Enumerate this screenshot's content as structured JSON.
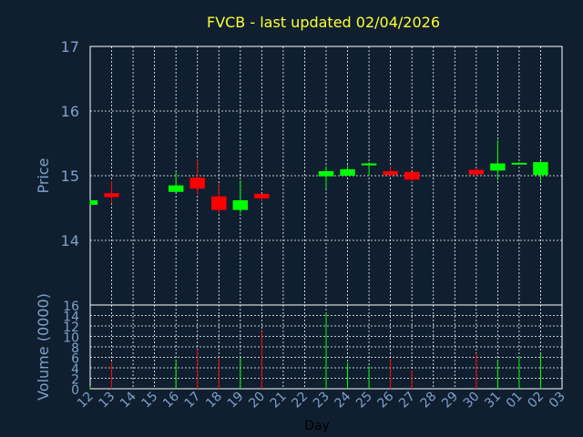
{
  "colors": {
    "background": "#0f1f30",
    "up": "#00ff00",
    "down": "#ff0000",
    "title": "#ffff33",
    "axis_text": "#7fa0c8",
    "grid": "#ffffff"
  },
  "chart_data": [
    {
      "type": "candlestick",
      "title": "FVCB - last updated 02/04/2026",
      "ylabel": "Price",
      "ylim": [
        13.0,
        17.0
      ],
      "yticks": [
        14,
        15,
        16,
        17
      ],
      "grid": true,
      "x": [
        "12",
        "13",
        "14",
        "15",
        "16",
        "17",
        "18",
        "19",
        "20",
        "21",
        "22",
        "23",
        "24",
        "25",
        "26",
        "27",
        "28",
        "29",
        "30",
        "31",
        "01",
        "02",
        "03"
      ],
      "candles": [
        {
          "x": "12",
          "open": 14.55,
          "high": 14.62,
          "low": 14.55,
          "close": 14.62
        },
        {
          "x": "13",
          "open": 14.73,
          "high": 14.92,
          "low": 14.57,
          "close": 14.67
        },
        {
          "x": "16",
          "open": 14.75,
          "high": 15.05,
          "low": 14.75,
          "close": 14.85
        },
        {
          "x": "17",
          "open": 14.97,
          "high": 15.25,
          "low": 14.72,
          "close": 14.8
        },
        {
          "x": "18",
          "open": 14.68,
          "high": 14.88,
          "low": 14.42,
          "close": 14.47
        },
        {
          "x": "19",
          "open": 14.47,
          "high": 14.93,
          "low": 14.42,
          "close": 14.62
        },
        {
          "x": "20",
          "open": 14.72,
          "high": 14.72,
          "low": 14.6,
          "close": 14.65
        },
        {
          "x": "23",
          "open": 14.99,
          "high": 15.15,
          "low": 14.8,
          "close": 15.07
        },
        {
          "x": "24",
          "open": 15.0,
          "high": 15.16,
          "low": 15.0,
          "close": 15.1
        },
        {
          "x": "25",
          "open": 15.16,
          "high": 15.21,
          "low": 15.0,
          "close": 15.19
        },
        {
          "x": "26",
          "open": 15.07,
          "high": 15.15,
          "low": 14.99,
          "close": 15.01
        },
        {
          "x": "27",
          "open": 15.06,
          "high": 15.06,
          "low": 14.9,
          "close": 14.94
        },
        {
          "x": "30",
          "open": 15.09,
          "high": 15.12,
          "low": 14.99,
          "close": 15.02
        },
        {
          "x": "31",
          "open": 15.08,
          "high": 15.55,
          "low": 14.93,
          "close": 15.19
        },
        {
          "x": "01",
          "open": 15.18,
          "high": 15.21,
          "low": 15.17,
          "close": 15.2
        },
        {
          "x": "02",
          "open": 15.01,
          "high": 15.22,
          "low": 14.92,
          "close": 15.21
        }
      ]
    },
    {
      "type": "bar",
      "ylabel": "Volume (0000)",
      "xlabel": "Day",
      "ylim": [
        0,
        16
      ],
      "yticks": [
        0,
        2,
        4,
        6,
        8,
        10,
        12,
        14,
        16
      ],
      "grid": true,
      "x": [
        "12",
        "13",
        "14",
        "15",
        "16",
        "17",
        "18",
        "19",
        "20",
        "21",
        "22",
        "23",
        "24",
        "25",
        "26",
        "27",
        "28",
        "29",
        "30",
        "31",
        "01",
        "02",
        "03"
      ],
      "bars": [
        {
          "x": "12",
          "value": 0.5,
          "direction": "up"
        },
        {
          "x": "13",
          "value": 5,
          "direction": "down"
        },
        {
          "x": "16",
          "value": 5.5,
          "direction": "up"
        },
        {
          "x": "17",
          "value": 7.5,
          "direction": "down"
        },
        {
          "x": "18",
          "value": 6,
          "direction": "down"
        },
        {
          "x": "19",
          "value": 6,
          "direction": "up"
        },
        {
          "x": "20",
          "value": 11,
          "direction": "down"
        },
        {
          "x": "23",
          "value": 14.5,
          "direction": "up"
        },
        {
          "x": "24",
          "value": 5,
          "direction": "up"
        },
        {
          "x": "25",
          "value": 4.3,
          "direction": "up"
        },
        {
          "x": "26",
          "value": 5.8,
          "direction": "down"
        },
        {
          "x": "27",
          "value": 3.5,
          "direction": "down"
        },
        {
          "x": "30",
          "value": 6.8,
          "direction": "down"
        },
        {
          "x": "31",
          "value": 5.5,
          "direction": "up"
        },
        {
          "x": "01",
          "value": 6.2,
          "direction": "up"
        },
        {
          "x": "02",
          "value": 6.8,
          "direction": "up"
        }
      ]
    }
  ]
}
